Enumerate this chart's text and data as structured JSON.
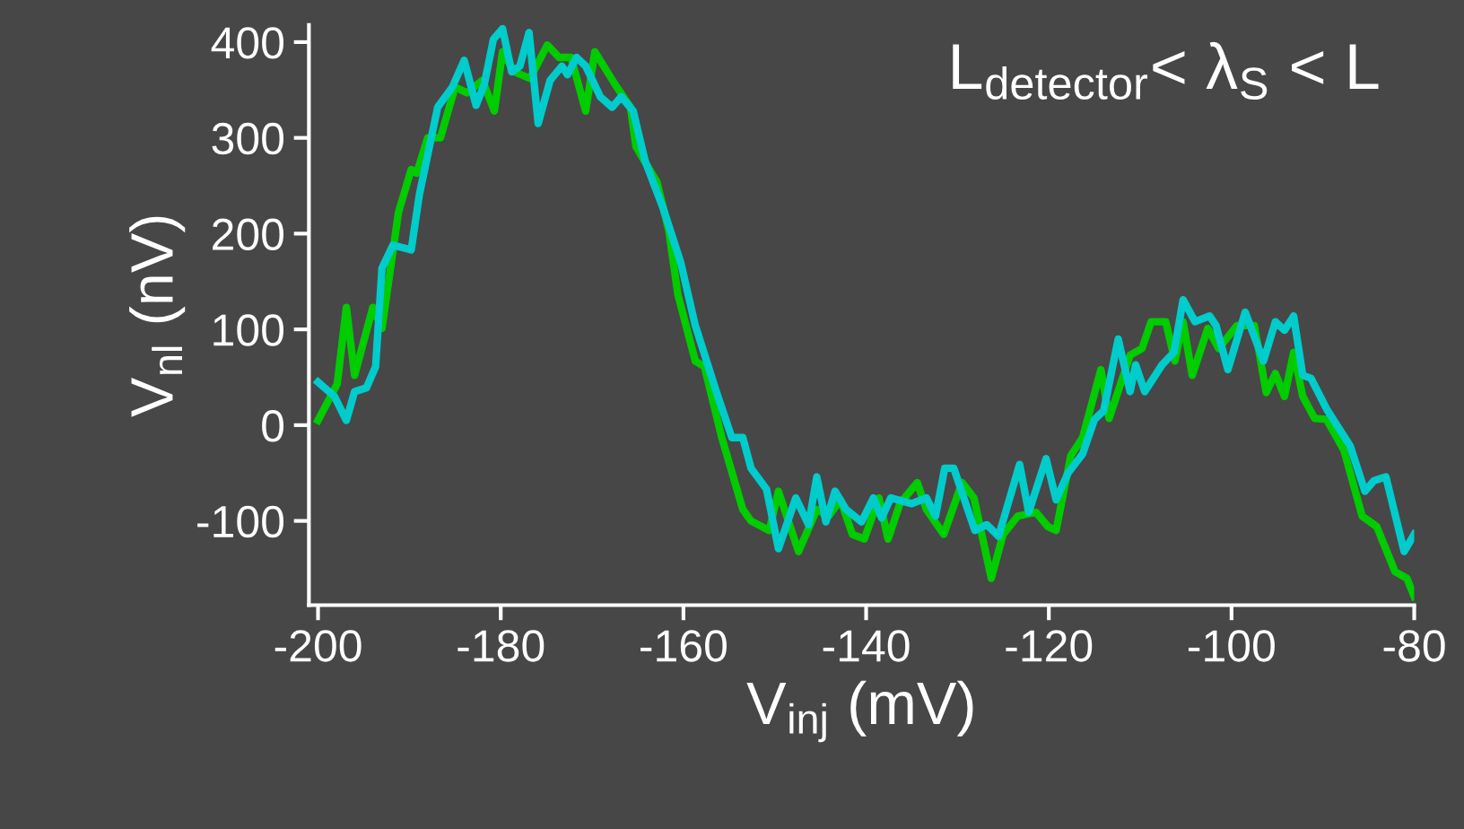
{
  "chart_data": {
    "type": "line",
    "xlabel": "V$_{inj}$ (mV)",
    "ylabel": "V$_{nl}$ (nV)",
    "annotations": [
      "L$_{detector}$< λ$_{S}$ < L"
    ],
    "xlim": [
      -201,
      -80
    ],
    "xticks": [
      -200,
      -180,
      -160,
      -140,
      -120,
      -100,
      -80
    ],
    "ylim": [
      -188,
      418
    ],
    "yticks": [
      -100,
      0,
      100,
      200,
      300,
      400
    ],
    "grid": false,
    "legend": false,
    "series": [
      {
        "color": "#00cc00",
        "x": [
          -200,
          -197.9,
          -196.9,
          -196,
          -194,
          -193,
          -191.2,
          -189.8,
          -189.2,
          -188,
          -186.6,
          -185,
          -183.7,
          -182,
          -180.7,
          -179.8,
          -178.5,
          -176.8,
          -174.9,
          -173.6,
          -172.3,
          -170.7,
          -169.7,
          -167.5,
          -165.8,
          -165.2,
          -162.9,
          -161.6,
          -160.6,
          -158.7,
          -157.7,
          -155.8,
          -153.5,
          -152.6,
          -150.6,
          -149.6,
          -147.4,
          -145.4,
          -144.1,
          -142.8,
          -141.5,
          -140.2,
          -138.6,
          -137.6,
          -136.3,
          -134.4,
          -133.4,
          -131.5,
          -129.5,
          -128.2,
          -126.3,
          -125,
          -123.4,
          -121.4,
          -120.1,
          -119.2,
          -117.6,
          -116.3,
          -114.3,
          -113.4,
          -111.1,
          -109.8,
          -108.8,
          -107.2,
          -106.2,
          -105.3,
          -104.3,
          -102.6,
          -101.4,
          -99.4,
          -97.5,
          -96.2,
          -95.2,
          -94.2,
          -93.2,
          -92.2,
          -90.9,
          -89.6,
          -87.7,
          -85.7,
          -84.1,
          -82.1,
          -80.8,
          -80
        ],
        "values": [
          5,
          43,
          123,
          52,
          123,
          101,
          222,
          267,
          263,
          300,
          300,
          353,
          347,
          360,
          328,
          390,
          369,
          362,
          397,
          384,
          384,
          328,
          390,
          356,
          332,
          291,
          254,
          203,
          136,
          67,
          61,
          -13,
          -88,
          -100,
          -110,
          -69,
          -132,
          -88,
          -95,
          -78,
          -114,
          -119,
          -76,
          -119,
          -82,
          -60,
          -88,
          -114,
          -60,
          -76,
          -160,
          -114,
          -95,
          -91,
          -106,
          -110,
          -32,
          -13,
          58,
          7,
          73,
          80,
          108,
          108,
          67,
          108,
          52,
          101,
          80,
          104,
          104,
          34,
          54,
          30,
          76,
          30,
          7,
          6,
          -26,
          -95,
          -106,
          -153,
          -160,
          -179
        ]
      },
      {
        "color": "#00cccc",
        "x": [
          -200,
          -198.2,
          -196.9,
          -196,
          -194.7,
          -193.7,
          -193,
          -191.8,
          -189.8,
          -188.9,
          -186.9,
          -185.3,
          -184,
          -182.7,
          -181.8,
          -180.8,
          -179.8,
          -178.8,
          -177.9,
          -176.9,
          -175.9,
          -174.6,
          -173.3,
          -172.7,
          -171.7,
          -170.7,
          -169.1,
          -167.8,
          -166.8,
          -165.5,
          -164.2,
          -162.2,
          -160.3,
          -158.7,
          -156.4,
          -154.7,
          -153.5,
          -152.6,
          -150.9,
          -149.6,
          -147.7,
          -146.3,
          -145.4,
          -144.4,
          -143.4,
          -142.2,
          -140.5,
          -139.2,
          -138.3,
          -137.3,
          -135,
          -133.4,
          -132.4,
          -131.4,
          -130.4,
          -128.1,
          -126.8,
          -125.5,
          -123.2,
          -122.2,
          -120.3,
          -119.2,
          -117.9,
          -116.3,
          -115,
          -114,
          -112.4,
          -111.1,
          -110.5,
          -109.5,
          -107.6,
          -106.3,
          -105.3,
          -104,
          -102.4,
          -101.7,
          -100.4,
          -98.5,
          -96.5,
          -95.2,
          -94.2,
          -93.2,
          -92.2,
          -91.3,
          -89.6,
          -87,
          -85.4,
          -84.4,
          -83.1,
          -81.1,
          -80
        ],
        "values": [
          45,
          30,
          5,
          35,
          39,
          61,
          164,
          188,
          183,
          241,
          332,
          353,
          381,
          334,
          356,
          403,
          414,
          369,
          375,
          410,
          315,
          360,
          375,
          366,
          384,
          375,
          343,
          332,
          343,
          328,
          276,
          226,
          170,
          104,
          35,
          -13,
          -13,
          -45,
          -67,
          -129,
          -76,
          -104,
          -54,
          -101,
          -69,
          -88,
          -101,
          -76,
          -97,
          -76,
          -82,
          -76,
          -95,
          -45,
          -45,
          -110,
          -104,
          -116,
          -41,
          -91,
          -35,
          -78,
          -50,
          -30,
          6,
          15,
          90,
          35,
          63,
          35,
          63,
          76,
          131,
          108,
          114,
          104,
          58,
          118,
          67,
          108,
          99,
          114,
          52,
          49,
          17,
          -22,
          -69,
          -58,
          -54,
          -132,
          -114
        ]
      }
    ]
  }
}
